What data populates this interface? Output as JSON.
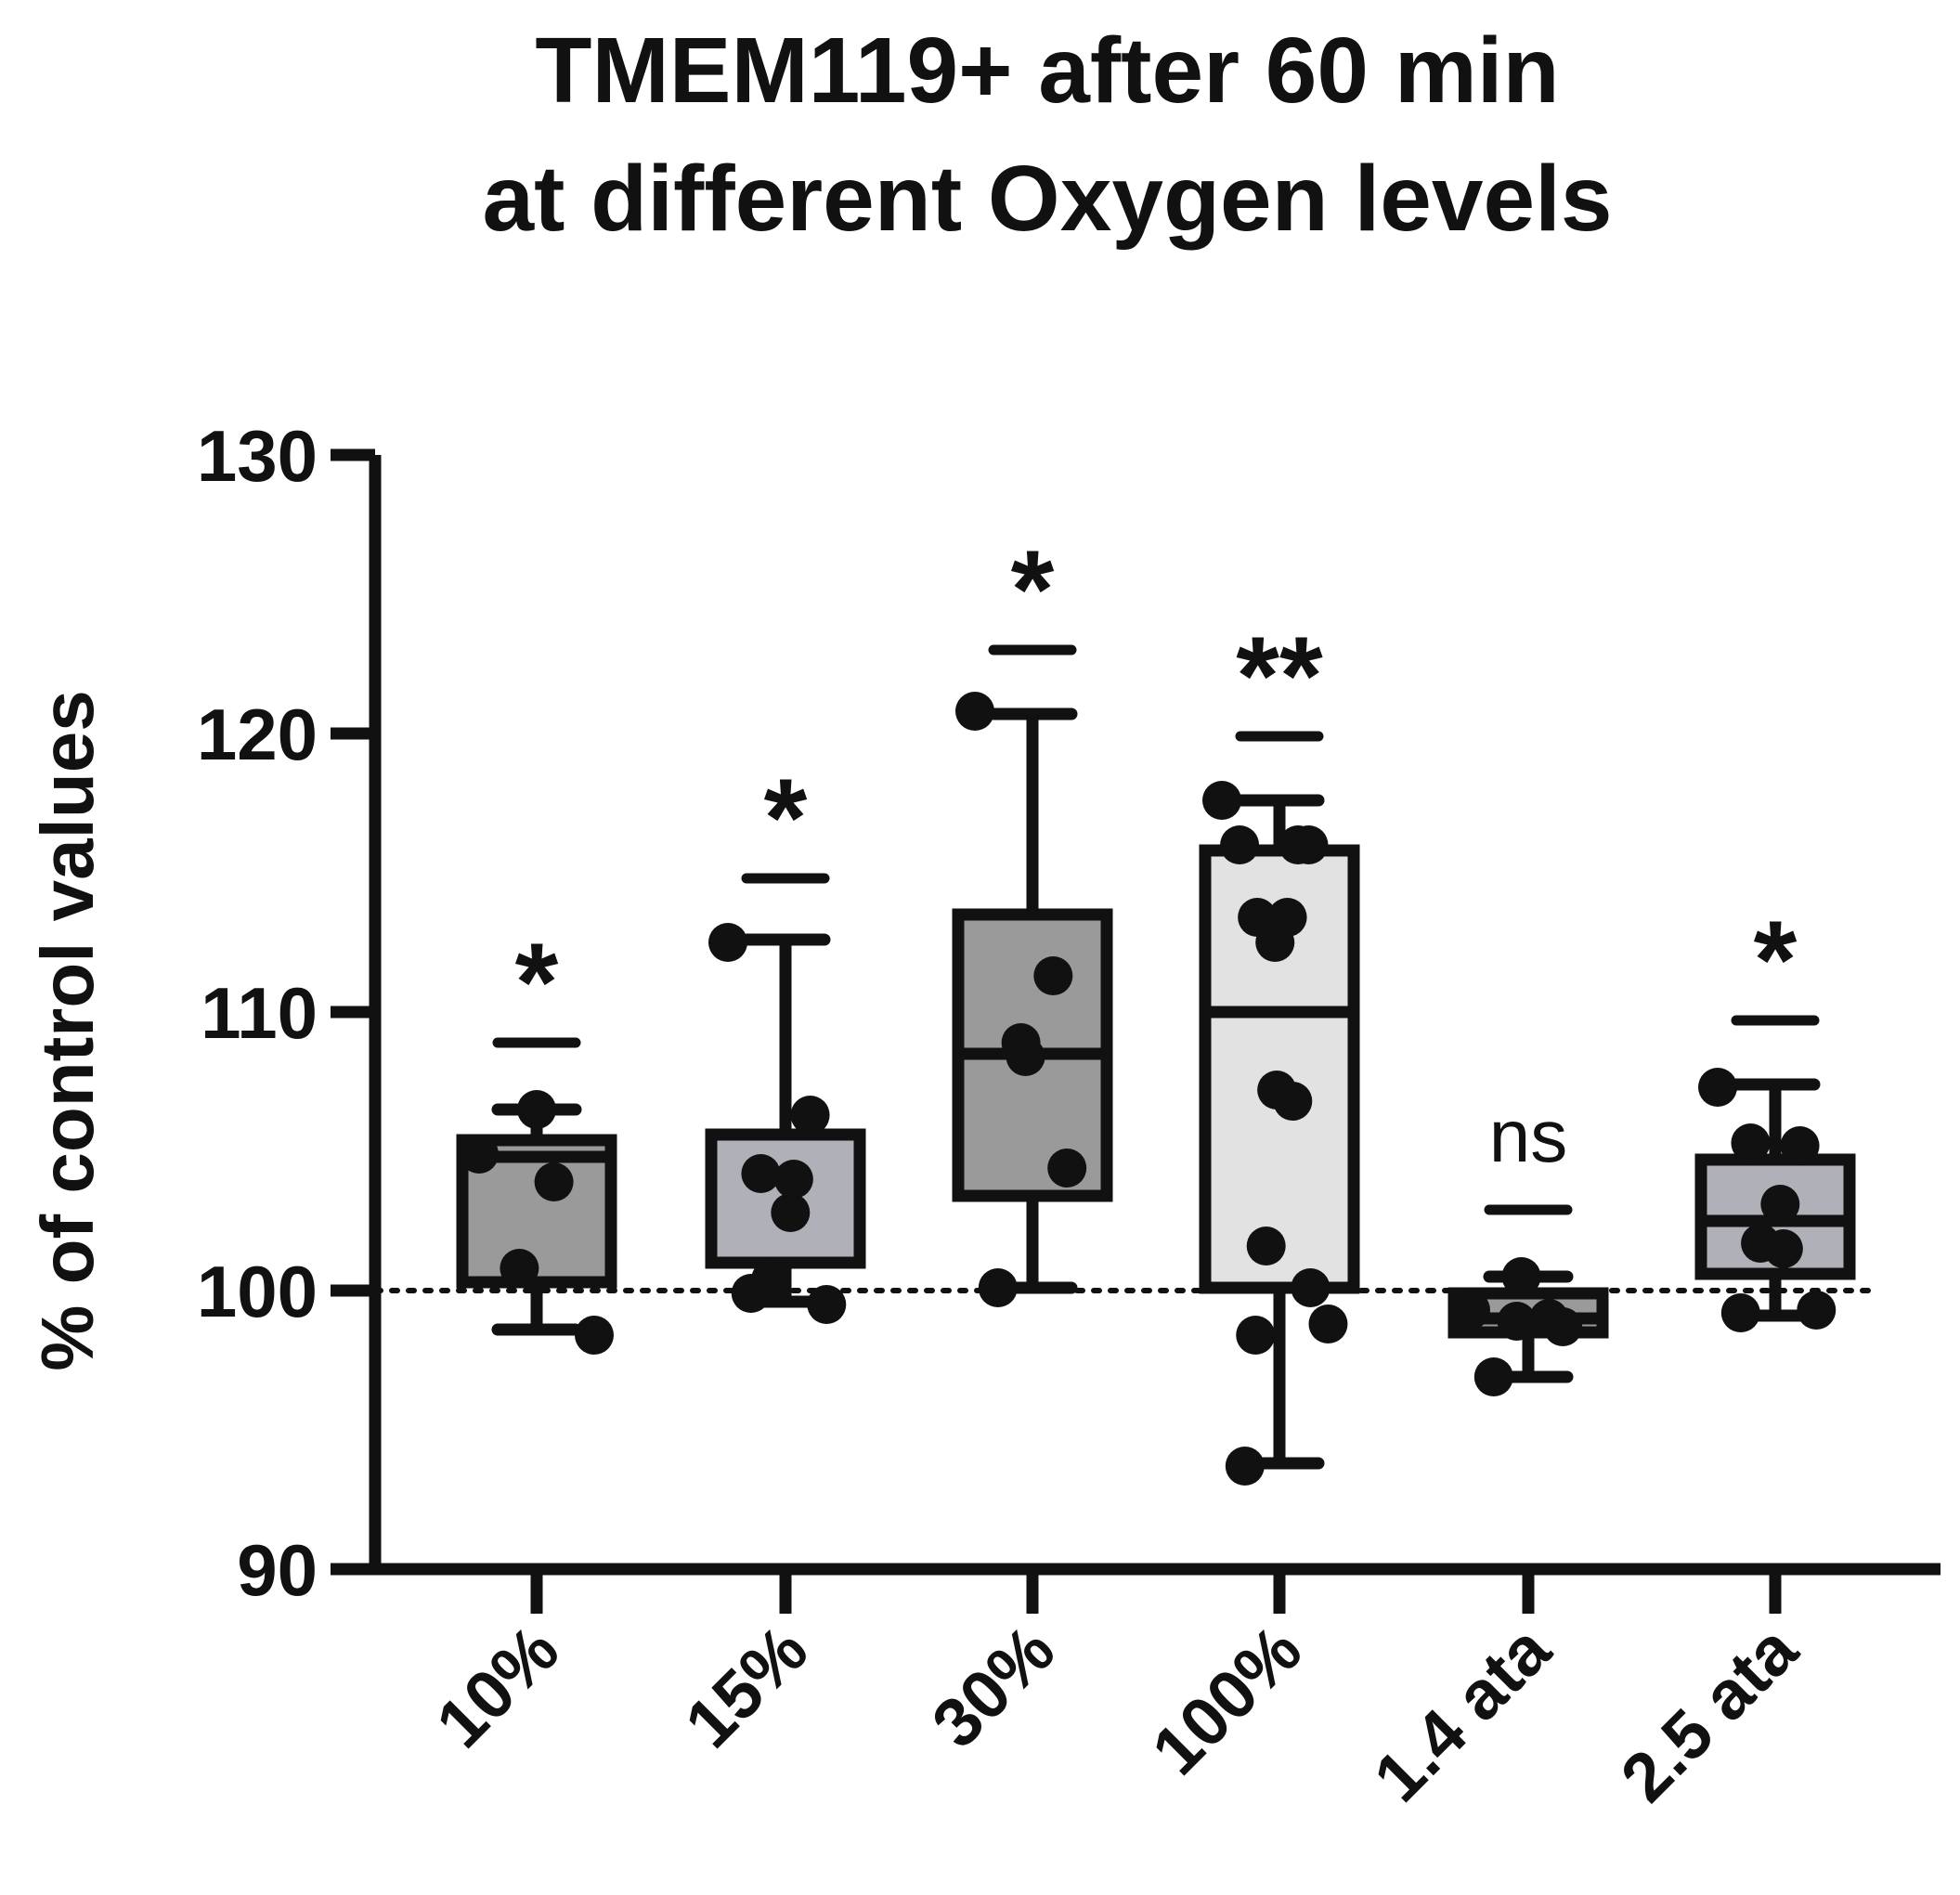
{
  "chart_data": {
    "type": "box",
    "title_lines": [
      "TMEM119+ after 60 min",
      "at different Oxygen levels"
    ],
    "ylabel": "% of control values",
    "xlabel": "",
    "ylim": [
      90,
      130
    ],
    "yticks": [
      90,
      100,
      110,
      120,
      130
    ],
    "reference_line": 100,
    "grid": false,
    "categories": [
      "10%",
      "15%",
      "30%",
      "100%",
      "1.4 ata",
      "2.5 ata"
    ],
    "box_colors": [
      "#9a9a9a",
      "#b0b0b8",
      "#9a9a9a",
      "#e2e2e2",
      "#9a9a9a",
      "#b0b0b8"
    ],
    "boxes": [
      {
        "min": 98.6,
        "q1": 100.3,
        "median": 104.8,
        "q3": 105.4,
        "max": 106.5
      },
      {
        "min": 99.6,
        "q1": 101.0,
        "median": 101.0,
        "q3": 105.6,
        "max": 112.6
      },
      {
        "min": 100.1,
        "q1": 103.4,
        "median": 108.5,
        "q3": 113.5,
        "max": 120.7
      },
      {
        "min": 93.8,
        "q1": 100.1,
        "median": 110.0,
        "q3": 115.8,
        "max": 117.6
      },
      {
        "min": 96.9,
        "q1": 98.5,
        "median": 99.0,
        "q3": 99.9,
        "max": 100.5
      },
      {
        "min": 99.1,
        "q1": 100.6,
        "median": 102.5,
        "q3": 104.7,
        "max": 107.4
      }
    ],
    "points": [
      [
        104.9,
        103.9,
        106.5,
        100.8,
        98.4
      ],
      [
        112.5,
        106.3,
        104.2,
        102.8,
        104.0,
        100.4,
        99.5,
        99.9
      ],
      [
        120.8,
        111.3,
        108.9,
        108.4,
        104.4,
        100.1
      ],
      [
        117.6,
        116.0,
        116.0,
        116.0,
        113.4,
        113.4,
        112.5,
        107.2,
        106.8,
        101.6,
        100.1,
        98.4,
        98.8,
        93.7
      ],
      [
        99.3,
        99.0,
        98.9,
        100.5,
        98.7,
        96.9
      ],
      [
        107.3,
        105.2,
        105.3,
        103.1,
        101.5,
        101.7,
        99.3,
        99.2
      ]
    ],
    "significance": [
      "*",
      "*",
      "*",
      "**",
      "ns",
      "*"
    ],
    "significance_levels": [
      108.9,
      114.8,
      123.0,
      119.9,
      102.9,
      109.7
    ]
  }
}
